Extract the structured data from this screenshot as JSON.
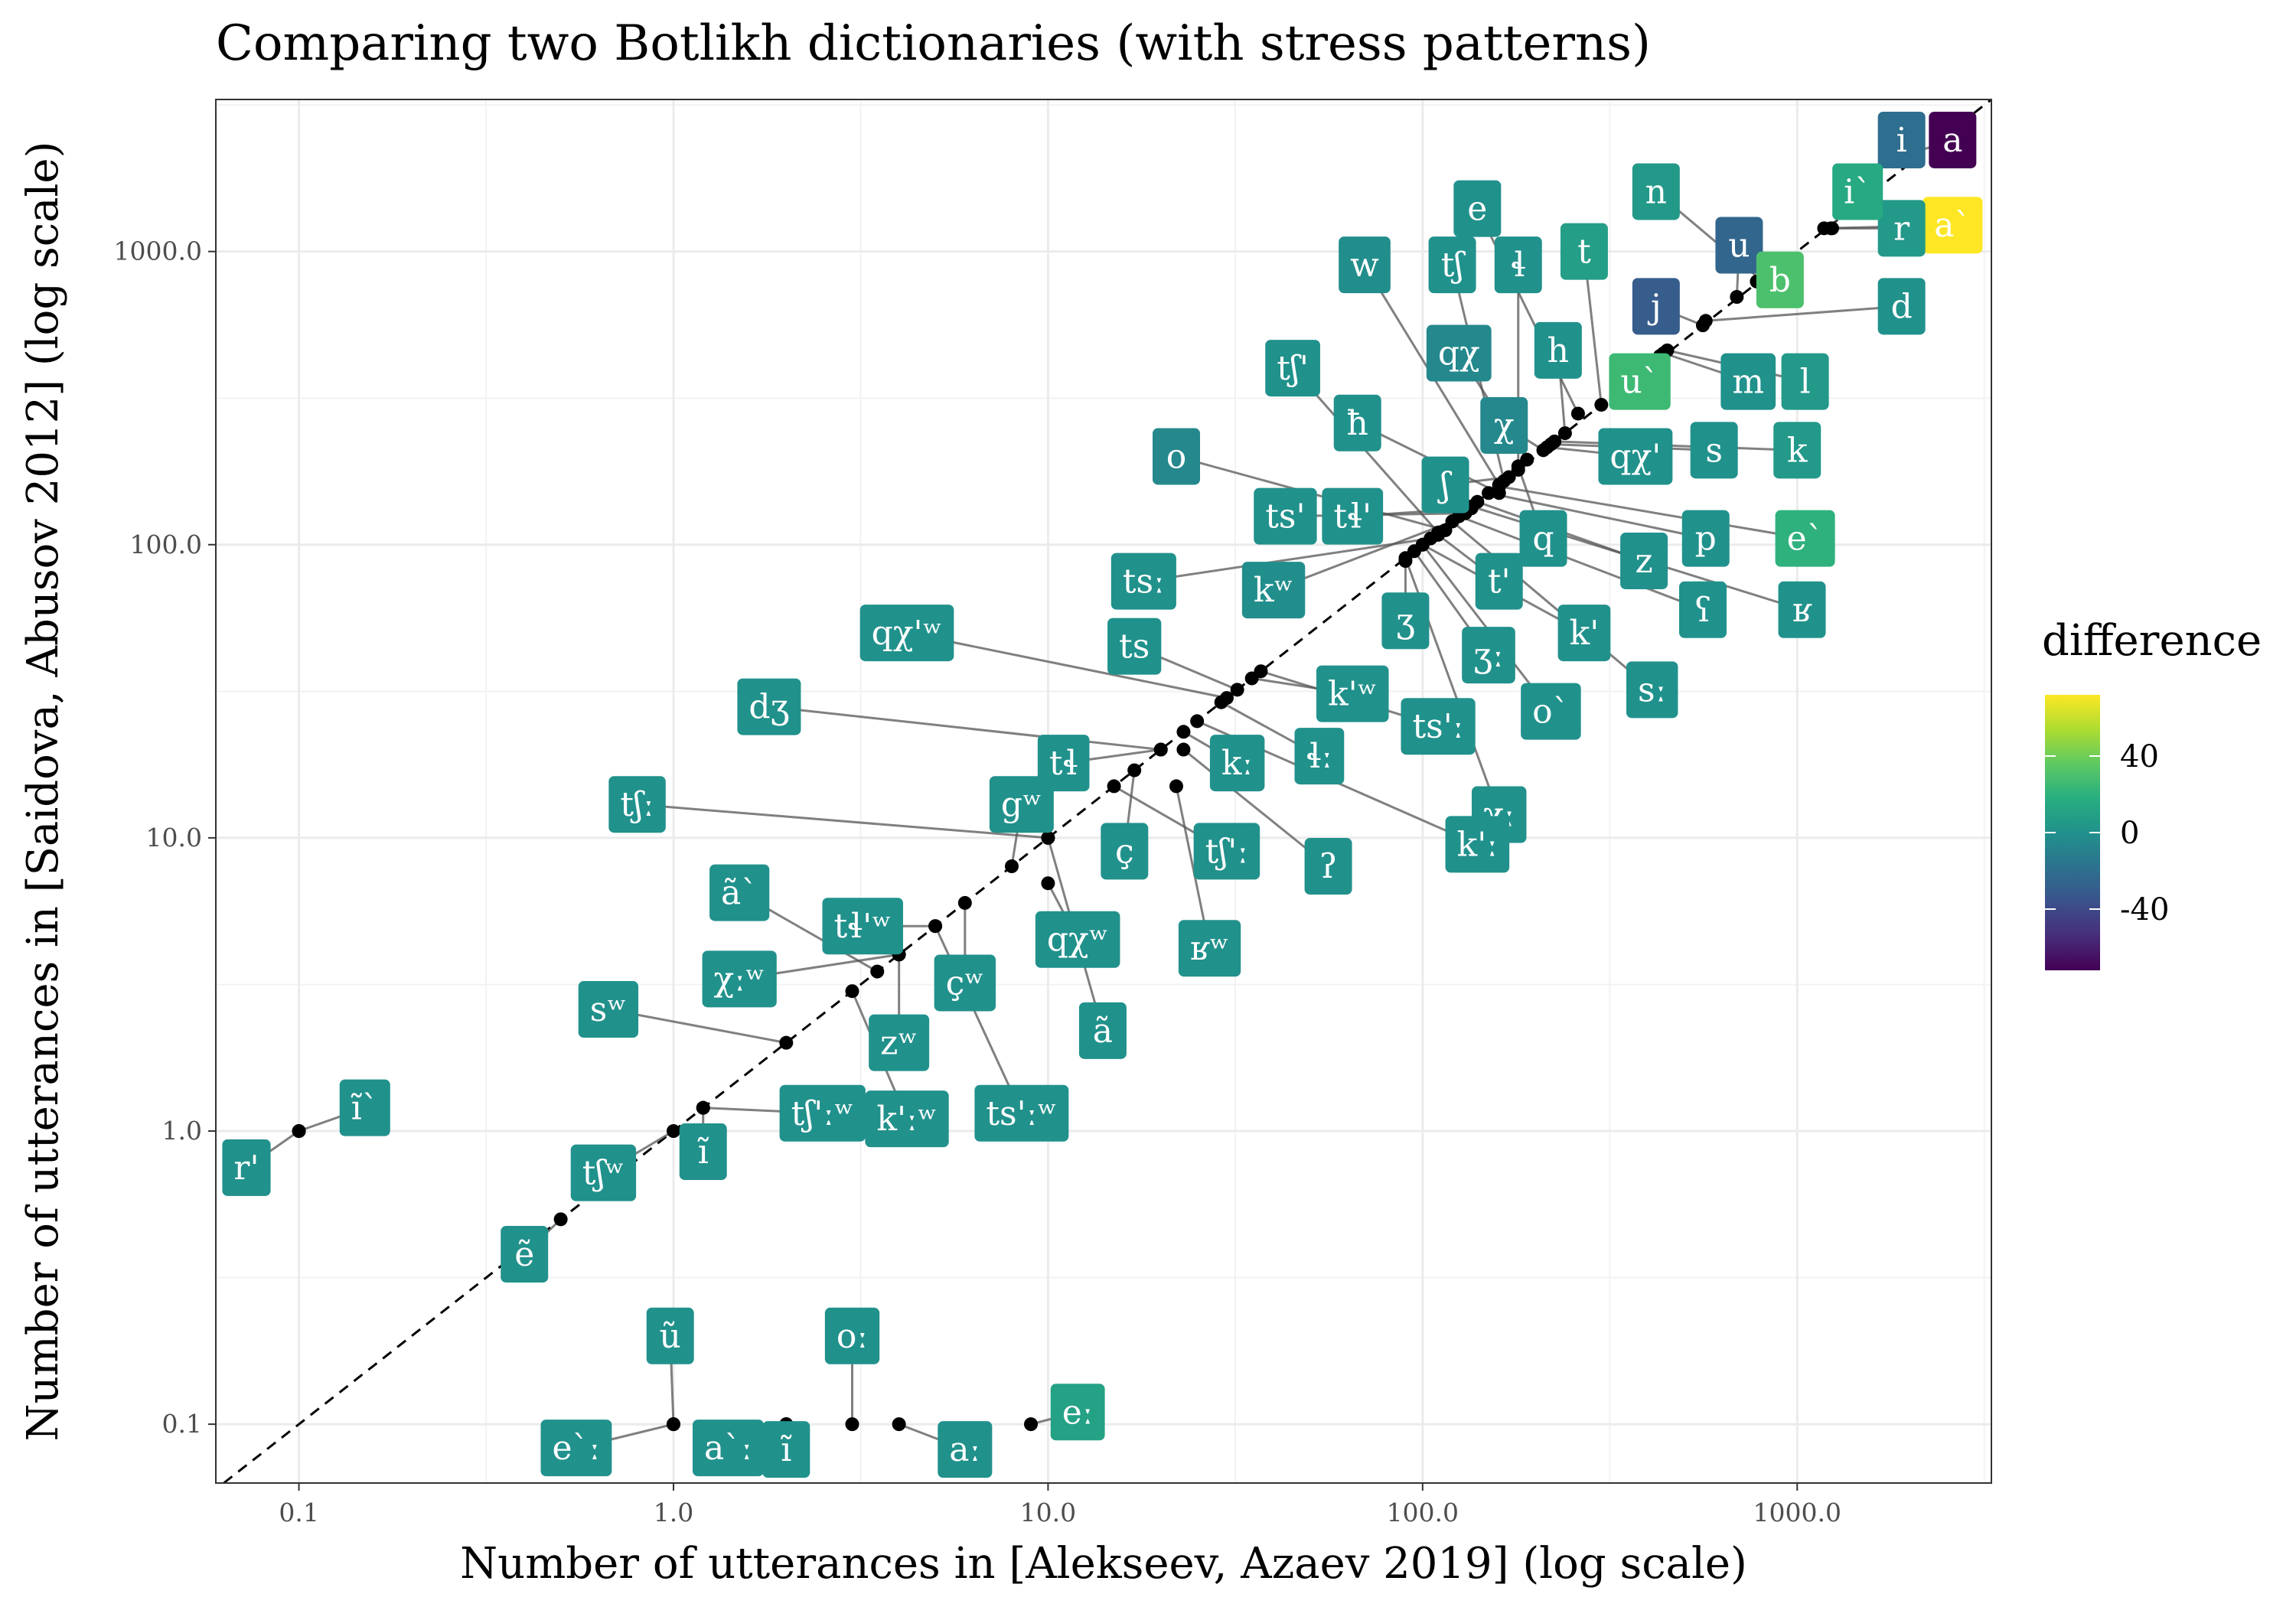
{
  "chart_data": {
    "type": "scatter",
    "title": "Comparing two Botlikh dictionaries (with stress patterns)",
    "xlabel": "Number of utterances in [Alekseev, Azaev 2019] (log scale)",
    "ylabel": "Number of utterances in [Saidova, Abusov 2012] (log scale)",
    "x_scale": "log",
    "y_scale": "log",
    "xlim": [
      0.06,
      3300
    ],
    "ylim": [
      0.063,
      3300
    ],
    "x_ticks": [
      0.1,
      1,
      10,
      100,
      1000
    ],
    "x_tick_labels": [
      "0.1",
      "1.0",
      "10.0",
      "100.0",
      "1000.0"
    ],
    "y_ticks": [
      0.1,
      1,
      10,
      100,
      1000
    ],
    "y_tick_labels": [
      "0.1",
      "1.0",
      "10.0",
      "100.0",
      "1000.0"
    ],
    "grid": true,
    "reference_line": "y = x (dashed)",
    "legend": {
      "title": "difference",
      "type": "colorbar",
      "palette": "viridis",
      "range": [
        -72,
        72
      ],
      "ticks": [
        40,
        0,
        -40
      ],
      "tick_labels": [
        "40",
        "0",
        "-40"
      ],
      "position": "right"
    },
    "points": [
      {
        "label": "a",
        "x": 2100,
        "y": 2200,
        "lx": 2600,
        "ly": 2400,
        "diff": -72
      },
      {
        "label": "i",
        "x": 2100,
        "y": 2150,
        "lx": 1900,
        "ly": 2400,
        "diff": -20
      },
      {
        "label": "a`",
        "x": 1180,
        "y": 1200,
        "lx": 2600,
        "ly": 1230,
        "diff": 72
      },
      {
        "label": "r",
        "x": 1240,
        "y": 1200,
        "lx": 1900,
        "ly": 1200,
        "diff": 5
      },
      {
        "label": "i`",
        "x": 1230,
        "y": 1200,
        "lx": 1450,
        "ly": 1600,
        "diff": 15
      },
      {
        "label": "n",
        "x": 800,
        "y": 800,
        "lx": 420,
        "ly": 1600,
        "diff": 5
      },
      {
        "label": "u",
        "x": 690,
        "y": 700,
        "lx": 700,
        "ly": 1050,
        "diff": -25
      },
      {
        "label": "b",
        "x": 780,
        "y": 790,
        "lx": 900,
        "ly": 800,
        "diff": 30
      },
      {
        "label": "e",
        "x": 260,
        "y": 280,
        "lx": 140,
        "ly": 1400,
        "diff": 0
      },
      {
        "label": "t",
        "x": 300,
        "y": 300,
        "lx": 270,
        "ly": 1000,
        "diff": 8
      },
      {
        "label": "ɬ",
        "x": 180,
        "y": 180,
        "lx": 180,
        "ly": 900,
        "diff": 0
      },
      {
        "label": "j",
        "x": 560,
        "y": 560,
        "lx": 420,
        "ly": 650,
        "diff": -30
      },
      {
        "label": "d",
        "x": 570,
        "y": 580,
        "lx": 1900,
        "ly": 650,
        "diff": 0
      },
      {
        "label": "w",
        "x": 160,
        "y": 160,
        "lx": 70,
        "ly": 900,
        "diff": -2
      },
      {
        "label": "tʃ",
        "x": 165,
        "y": 165,
        "lx": 120,
        "ly": 900,
        "diff": 0
      },
      {
        "label": "h",
        "x": 240,
        "y": 240,
        "lx": 230,
        "ly": 460,
        "diff": 0
      },
      {
        "label": "qχ",
        "x": 190,
        "y": 195,
        "lx": 125,
        "ly": 450,
        "diff": -5
      },
      {
        "label": "u`",
        "x": 430,
        "y": 440,
        "lx": 380,
        "ly": 360,
        "diff": 25
      },
      {
        "label": "m",
        "x": 440,
        "y": 450,
        "lx": 740,
        "ly": 360,
        "diff": 0
      },
      {
        "label": "l",
        "x": 450,
        "y": 460,
        "lx": 1050,
        "ly": 360,
        "diff": 5
      },
      {
        "label": "tʃ'",
        "x": 110,
        "y": 110,
        "lx": 45,
        "ly": 400,
        "diff": 0
      },
      {
        "label": "χ",
        "x": 210,
        "y": 210,
        "lx": 165,
        "ly": 255,
        "diff": -5
      },
      {
        "label": "qχ'",
        "x": 215,
        "y": 215,
        "lx": 370,
        "ly": 200,
        "diff": 0
      },
      {
        "label": "s",
        "x": 220,
        "y": 220,
        "lx": 600,
        "ly": 210,
        "diff": 0
      },
      {
        "label": "k",
        "x": 225,
        "y": 225,
        "lx": 1000,
        "ly": 210,
        "diff": 5
      },
      {
        "label": "ħ",
        "x": 160,
        "y": 150,
        "lx": 67,
        "ly": 260,
        "diff": 0
      },
      {
        "label": "o",
        "x": 115,
        "y": 112,
        "lx": 22,
        "ly": 200,
        "diff": -5
      },
      {
        "label": "ʃ",
        "x": 170,
        "y": 170,
        "lx": 115,
        "ly": 160,
        "diff": 0
      },
      {
        "label": "q",
        "x": 180,
        "y": 185,
        "lx": 210,
        "ly": 105,
        "diff": 0
      },
      {
        "label": "ts'",
        "x": 130,
        "y": 128,
        "lx": 43,
        "ly": 125,
        "diff": 0
      },
      {
        "label": "tɬ'",
        "x": 135,
        "y": 133,
        "lx": 65,
        "ly": 125,
        "diff": 0
      },
      {
        "label": "p",
        "x": 150,
        "y": 150,
        "lx": 570,
        "ly": 105,
        "diff": 0
      },
      {
        "label": "e`",
        "x": 160,
        "y": 158,
        "lx": 1050,
        "ly": 105,
        "diff": 20
      },
      {
        "label": "z",
        "x": 140,
        "y": 140,
        "lx": 390,
        "ly": 88,
        "diff": 0
      },
      {
        "label": "tsː",
        "x": 105,
        "y": 105,
        "lx": 18,
        "ly": 75,
        "diff": 0
      },
      {
        "label": "kʷ",
        "x": 120,
        "y": 120,
        "lx": 40,
        "ly": 70,
        "diff": -2
      },
      {
        "label": "t'",
        "x": 110,
        "y": 108,
        "lx": 160,
        "ly": 75,
        "diff": 0
      },
      {
        "label": "ʕ",
        "x": 125,
        "y": 125,
        "lx": 560,
        "ly": 60,
        "diff": 0
      },
      {
        "label": "ʁ",
        "x": 135,
        "y": 135,
        "lx": 1030,
        "ly": 60,
        "diff": 0
      },
      {
        "label": "ʒ",
        "x": 90,
        "y": 88,
        "lx": 90,
        "ly": 55,
        "diff": 0
      },
      {
        "label": "k'",
        "x": 100,
        "y": 100,
        "lx": 270,
        "ly": 50,
        "diff": 0
      },
      {
        "label": "ʒː",
        "x": 95,
        "y": 95,
        "lx": 150,
        "ly": 42,
        "diff": 0
      },
      {
        "label": "sː",
        "x": 120,
        "y": 120,
        "lx": 410,
        "ly": 32,
        "diff": 0
      },
      {
        "label": "qχ'ʷ",
        "x": 30,
        "y": 30,
        "lx": 4.2,
        "ly": 50,
        "diff": 0
      },
      {
        "label": "ts",
        "x": 32,
        "y": 32,
        "lx": 17,
        "ly": 45,
        "diff": 0
      },
      {
        "label": "k'ʷ",
        "x": 35,
        "y": 35,
        "lx": 65,
        "ly": 31,
        "diff": 0
      },
      {
        "label": "ts'ː",
        "x": 37,
        "y": 37,
        "lx": 110,
        "ly": 24,
        "diff": 0
      },
      {
        "label": "o`",
        "x": 100,
        "y": 100,
        "lx": 220,
        "ly": 27,
        "diff": 0
      },
      {
        "label": "χː",
        "x": 90,
        "y": 90,
        "lx": 160,
        "ly": 12,
        "diff": 0
      },
      {
        "label": "dʒ",
        "x": 20,
        "y": 20,
        "lx": 1.8,
        "ly": 28,
        "diff": 0
      },
      {
        "label": "tɬ",
        "x": 20,
        "y": 20,
        "lx": 11,
        "ly": 18,
        "diff": 0
      },
      {
        "label": "kː",
        "x": 23,
        "y": 23,
        "lx": 32,
        "ly": 18,
        "diff": 0
      },
      {
        "label": "ɬː",
        "x": 29,
        "y": 29,
        "lx": 53,
        "ly": 19,
        "diff": 0
      },
      {
        "label": "k'ː",
        "x": 25,
        "y": 25,
        "lx": 140,
        "ly": 9.5,
        "diff": 0
      },
      {
        "label": "tʃː",
        "x": 10,
        "y": 10,
        "lx": 0.8,
        "ly": 13,
        "diff": 0
      },
      {
        "label": "gʷ",
        "x": 8,
        "y": 8,
        "lx": 8.5,
        "ly": 13,
        "diff": 0
      },
      {
        "label": "ç",
        "x": 17,
        "y": 17,
        "lx": 16,
        "ly": 9,
        "diff": 0
      },
      {
        "label": "tʃ'ː",
        "x": 15,
        "y": 15,
        "lx": 30,
        "ly": 9,
        "diff": 0
      },
      {
        "label": "ʔ",
        "x": 23,
        "y": 20,
        "lx": 56,
        "ly": 8,
        "diff": 0
      },
      {
        "label": "ã`",
        "x": 3.5,
        "y": 3.5,
        "lx": 1.5,
        "ly": 6.5,
        "diff": 0
      },
      {
        "label": "tɬ'ʷ",
        "x": 5,
        "y": 5,
        "lx": 3.2,
        "ly": 5,
        "diff": 0
      },
      {
        "label": "qχʷ",
        "x": 10,
        "y": 7,
        "lx": 12,
        "ly": 4.5,
        "diff": 0
      },
      {
        "label": "ʁʷ",
        "x": 22,
        "y": 15,
        "lx": 27,
        "ly": 4.2,
        "diff": 0
      },
      {
        "label": "χːʷ",
        "x": 4,
        "y": 4,
        "lx": 1.5,
        "ly": 3.3,
        "diff": 0
      },
      {
        "label": "çʷ",
        "x": 6,
        "y": 6,
        "lx": 6,
        "ly": 3.2,
        "diff": 0
      },
      {
        "label": "ã",
        "x": 10,
        "y": 10,
        "lx": 14,
        "ly": 2.2,
        "diff": 0
      },
      {
        "label": "sʷ",
        "x": 2,
        "y": 2,
        "lx": 0.67,
        "ly": 2.6,
        "diff": 0
      },
      {
        "label": "zʷ",
        "x": 4,
        "y": 4,
        "lx": 4,
        "ly": 2,
        "diff": 0
      },
      {
        "label": "tʃ'ːʷ",
        "x": 1.2,
        "y": 1.2,
        "lx": 2.5,
        "ly": 1.15,
        "diff": 0
      },
      {
        "label": "k'ːʷ",
        "x": 3,
        "y": 3,
        "lx": 4.2,
        "ly": 1.1,
        "diff": 0
      },
      {
        "label": "ts'ːʷ",
        "x": 5,
        "y": 5,
        "lx": 8.5,
        "ly": 1.15,
        "diff": 0
      },
      {
        "label": "r'",
        "x": 0.1,
        "y": 1.0,
        "lx": 0.06,
        "ly": 0.75,
        "diff": 0
      },
      {
        "label": "ĩ`",
        "x": 0.1,
        "y": 1.0,
        "lx": 0.15,
        "ly": 1.2,
        "diff": 0
      },
      {
        "label": "ĩ",
        "x": 1.2,
        "y": 1.2,
        "lx": 1.2,
        "ly": 0.85,
        "diff": 0
      },
      {
        "label": "tʃʷ",
        "x": 1.0,
        "y": 1.0,
        "lx": 0.65,
        "ly": 0.72,
        "diff": 0
      },
      {
        "label": "ẽ",
        "x": 0.5,
        "y": 0.5,
        "lx": 0.4,
        "ly": 0.38,
        "diff": 0
      },
      {
        "label": "ũ",
        "x": 1.0,
        "y": 0.1,
        "lx": 0.98,
        "ly": 0.2,
        "diff": 0
      },
      {
        "label": "oː",
        "x": 3.0,
        "y": 0.1,
        "lx": 3.0,
        "ly": 0.2,
        "diff": 0
      },
      {
        "label": "e`ː",
        "x": 1.0,
        "y": 0.1,
        "lx": 0.55,
        "ly": 0.083,
        "diff": 0
      },
      {
        "label": "a`ː",
        "x": 2.0,
        "y": 0.1,
        "lx": 1.4,
        "ly": 0.083,
        "diff": 0
      },
      {
        "label": "ĩ",
        "x": 2.0,
        "y": 0.1,
        "lx": 2.0,
        "ly": 0.082,
        "diff": 0
      },
      {
        "label": "aː",
        "x": 4.0,
        "y": 0.1,
        "lx": 6.0,
        "ly": 0.082,
        "diff": 0
      },
      {
        "label": "eː",
        "x": 9.0,
        "y": 0.1,
        "lx": 12.0,
        "ly": 0.11,
        "diff": 10
      }
    ]
  }
}
